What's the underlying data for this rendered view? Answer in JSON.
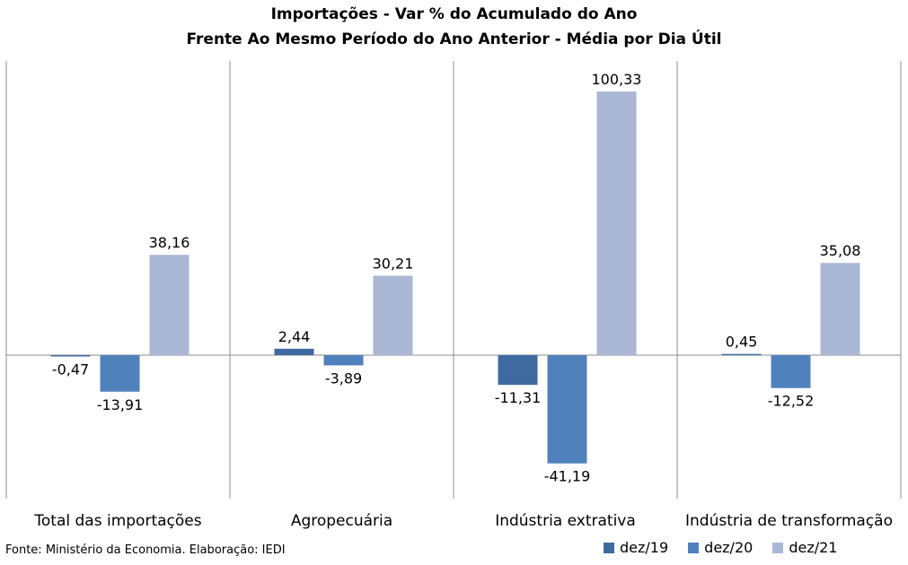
{
  "chart_data": {
    "type": "bar",
    "title": "Importações - Var % do Acumulado do Ano",
    "subtitle": "Frente Ao Mesmo Período do Ano Anterior - Média por Dia Útil",
    "categories": [
      "Total das importações",
      "Agropecuária",
      "Indústria extrativa",
      "Indústria de transformação"
    ],
    "series": [
      {
        "name": "dez/19",
        "color": "#3e6aa0",
        "values": [
          -0.47,
          2.44,
          -11.31,
          0.45
        ],
        "labels": [
          "-0,47",
          "2,44",
          "-11,31",
          "0,45"
        ]
      },
      {
        "name": "dez/20",
        "color": "#4f81bd",
        "values": [
          -13.91,
          -3.89,
          -41.19,
          -12.52
        ],
        "labels": [
          "-13,91",
          "-3,89",
          "-41,19",
          "-12,52"
        ]
      },
      {
        "name": "dez/21",
        "color": "#aab8d6",
        "values": [
          38.16,
          30.21,
          100.33,
          35.08
        ],
        "labels": [
          "38,16",
          "30,21",
          "100,33",
          "35,08"
        ]
      }
    ],
    "xlabel": "",
    "ylabel": "",
    "grid": false,
    "legend_position": "bottom-right"
  },
  "source": "Fonte: Ministério da Economia. Elaboração: IEDI"
}
